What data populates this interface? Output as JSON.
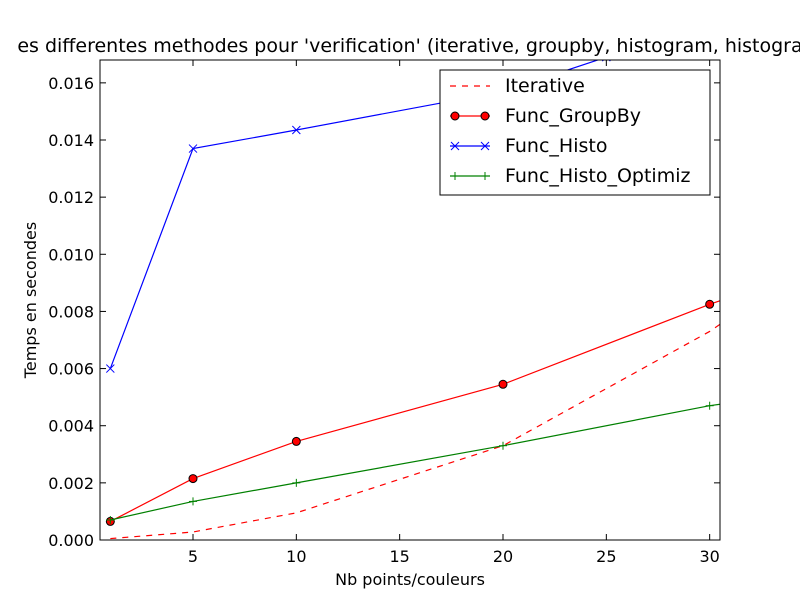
{
  "chart_data": {
    "type": "line",
    "title": "es differentes methodes pour 'verification' (iterative, groupby, histogram, histogra",
    "xlabel": "Nb points/couleurs",
    "ylabel": "Temps en secondes",
    "xlim": [
      0.5,
      30.5
    ],
    "ylim": [
      0,
      0.0168
    ],
    "xticks": [
      5,
      10,
      15,
      20,
      25,
      30
    ],
    "xtick_labels": [
      "5",
      "10",
      "15",
      "20",
      "25",
      "30"
    ],
    "yticks": [
      0,
      0.002,
      0.004,
      0.006,
      0.008,
      0.01,
      0.012,
      0.014,
      0.016
    ],
    "ytick_labels": [
      "0.000",
      "0.002",
      "0.004",
      "0.006",
      "0.008",
      "0.010",
      "0.012",
      "0.014",
      "0.016"
    ],
    "grid": false,
    "legend_position": "top-right",
    "series": [
      {
        "name": "Iterative",
        "color": "#ff0000",
        "style": "dashed",
        "marker": "none",
        "x": [
          1,
          5,
          10,
          20,
          30,
          31
        ],
        "y": [
          5e-05,
          0.00028,
          0.00095,
          0.0033,
          0.0073,
          0.0078
        ]
      },
      {
        "name": "Func_GroupBy",
        "color": "#ff0000",
        "style": "solid",
        "marker": "circle",
        "x": [
          1,
          5,
          10,
          20,
          30,
          31
        ],
        "y": [
          0.00065,
          0.00215,
          0.00345,
          0.00545,
          0.00825,
          0.0085
        ]
      },
      {
        "name": "Func_Histo",
        "color": "#0000ff",
        "style": "solid",
        "marker": "x",
        "x": [
          1,
          5,
          10,
          20,
          25,
          30
        ],
        "y": [
          0.006,
          0.0137,
          0.01435,
          0.0157,
          0.0169,
          0.019
        ]
      },
      {
        "name": "Func_Histo_Optimiz",
        "color": "#008000",
        "style": "solid",
        "marker": "plus",
        "x": [
          1,
          5,
          10,
          20,
          30,
          31
        ],
        "y": [
          0.0007,
          0.00135,
          0.002,
          0.0033,
          0.0047,
          0.0048
        ]
      }
    ]
  }
}
